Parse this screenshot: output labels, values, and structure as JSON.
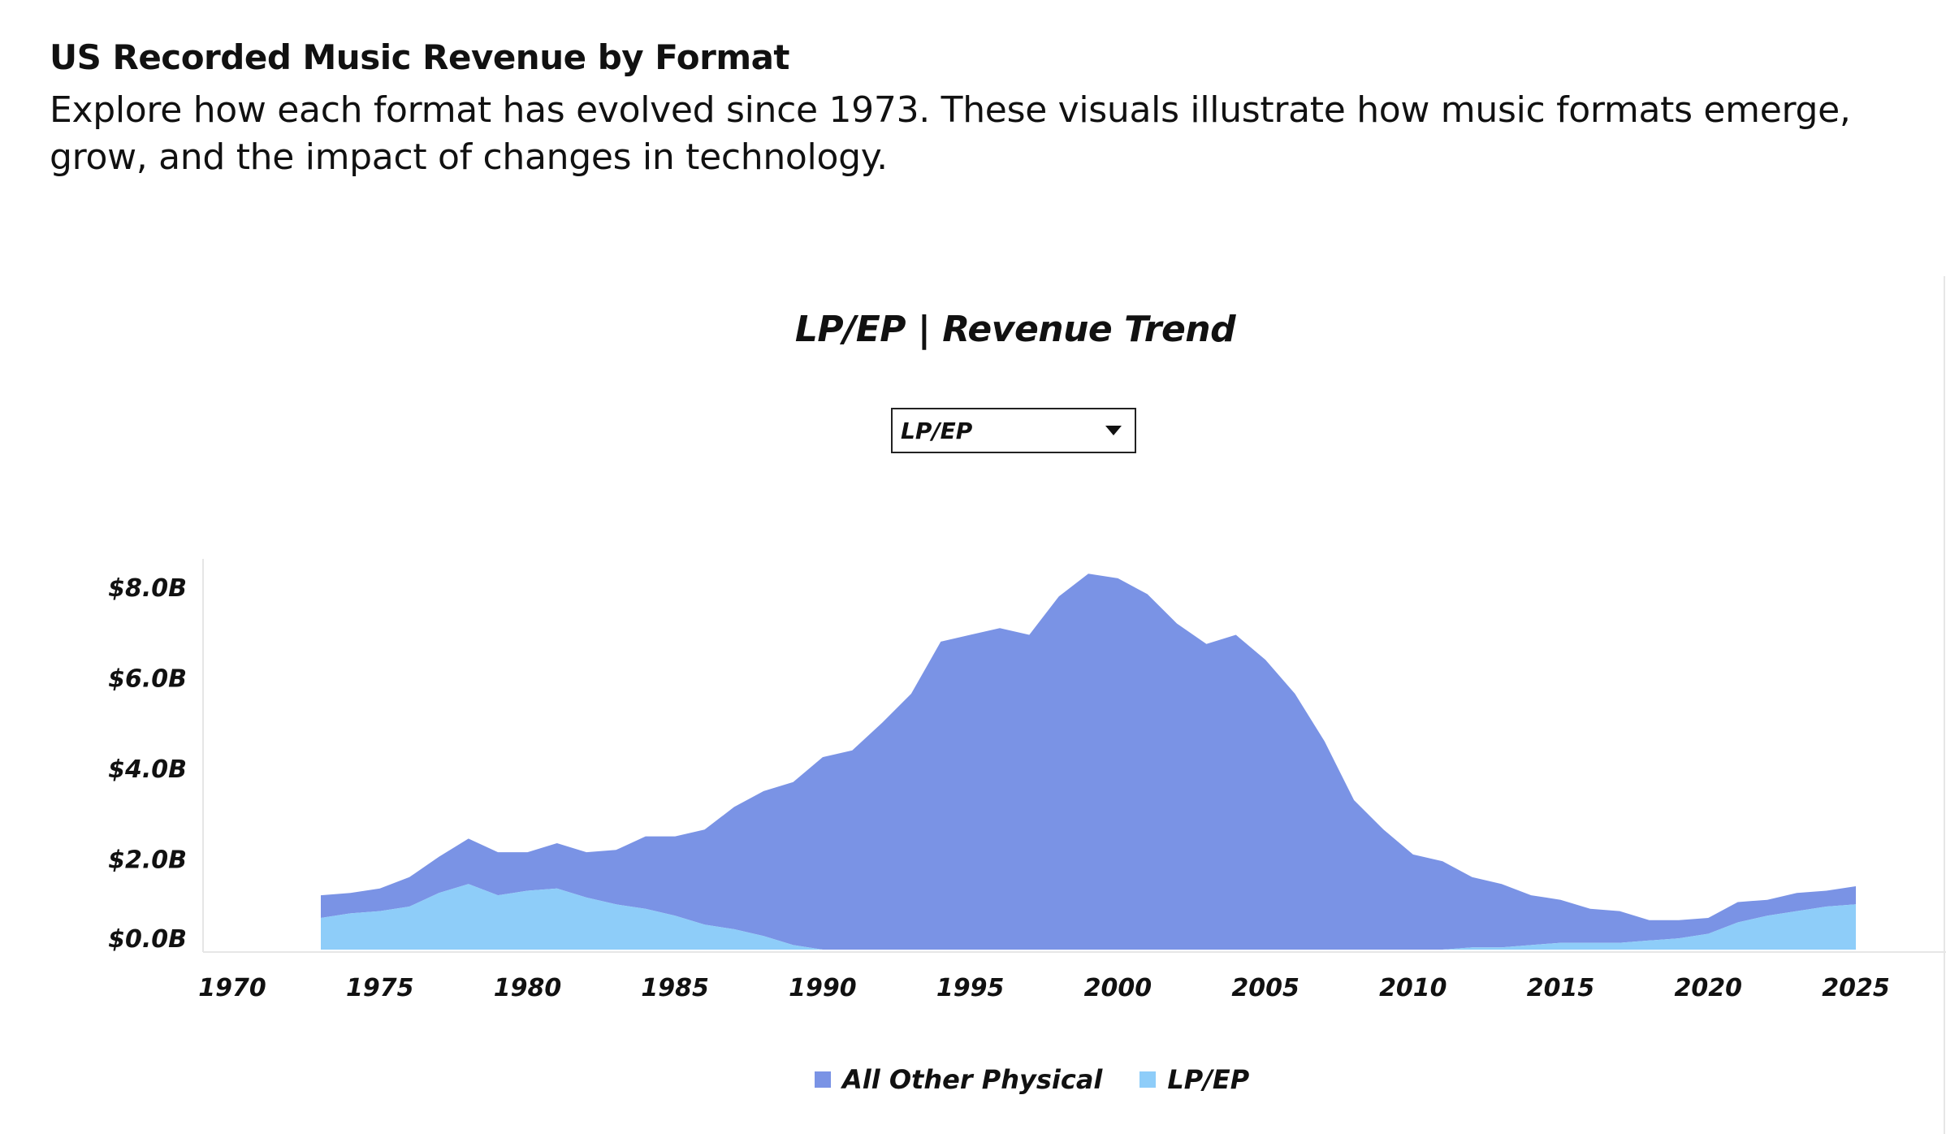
{
  "header": {
    "title": "US Recorded Music Revenue by Format",
    "subtitle": "Explore how each format has evolved since 1973. These visuals illustrate how music formats emerge, grow, and the impact of changes in technology."
  },
  "dropdown": {
    "selected": "LP/EP"
  },
  "colors": {
    "other": "#7a93e5",
    "lpep": "#8ecdf9"
  },
  "chart_data": {
    "type": "area",
    "title": "LP/EP | Revenue Trend",
    "xlabel": "",
    "ylabel": "",
    "x_ticks": [
      "1970",
      "1975",
      "1980",
      "1985",
      "1990",
      "1995",
      "2000",
      "2005",
      "2010",
      "2015",
      "2020",
      "2025"
    ],
    "y_ticks": [
      "$0.0B",
      "$2.0B",
      "$4.0B",
      "$6.0B",
      "$8.0B"
    ],
    "xlim": [
      1970,
      2025
    ],
    "ylim": [
      0,
      8.5
    ],
    "stacked": true,
    "legend_position": "bottom",
    "grid": false,
    "x": [
      1973,
      1974,
      1975,
      1976,
      1977,
      1978,
      1979,
      1980,
      1981,
      1982,
      1983,
      1984,
      1985,
      1986,
      1987,
      1988,
      1989,
      1990,
      1991,
      1992,
      1993,
      1994,
      1995,
      1996,
      1997,
      1998,
      1999,
      2000,
      2001,
      2002,
      2003,
      2004,
      2005,
      2006,
      2007,
      2008,
      2009,
      2010,
      2011,
      2012,
      2013,
      2014,
      2015,
      2016,
      2017,
      2018,
      2019,
      2020,
      2021,
      2022,
      2023,
      2024,
      2025
    ],
    "series": [
      {
        "name": "LP/EP",
        "values": [
          0.7,
          0.8,
          0.85,
          0.95,
          1.25,
          1.45,
          1.2,
          1.3,
          1.35,
          1.15,
          1.0,
          0.9,
          0.75,
          0.55,
          0.45,
          0.3,
          0.1,
          0.0,
          0.0,
          0.0,
          0.0,
          0.0,
          0.0,
          0.0,
          0.0,
          0.0,
          0.0,
          0.0,
          0.0,
          0.0,
          0.0,
          0.0,
          0.0,
          0.0,
          0.0,
          0.0,
          0.0,
          0.0,
          0.0,
          0.05,
          0.05,
          0.1,
          0.15,
          0.15,
          0.15,
          0.2,
          0.25,
          0.35,
          0.6,
          0.75,
          0.85,
          0.95,
          1.0
        ]
      },
      {
        "name": "All Other Physical",
        "values": [
          0.5,
          0.45,
          0.5,
          0.65,
          0.8,
          1.0,
          0.95,
          0.85,
          1.0,
          1.0,
          1.2,
          1.6,
          1.75,
          2.1,
          2.7,
          3.2,
          3.6,
          4.25,
          4.4,
          5.0,
          5.65,
          6.8,
          6.95,
          7.1,
          6.95,
          7.8,
          8.3,
          8.2,
          7.85,
          7.2,
          6.75,
          6.95,
          6.4,
          5.65,
          4.6,
          3.3,
          2.65,
          2.1,
          1.95,
          1.55,
          1.4,
          1.1,
          0.95,
          0.75,
          0.7,
          0.45,
          0.4,
          0.35,
          0.45,
          0.35,
          0.4,
          0.35,
          0.4
        ]
      }
    ]
  }
}
